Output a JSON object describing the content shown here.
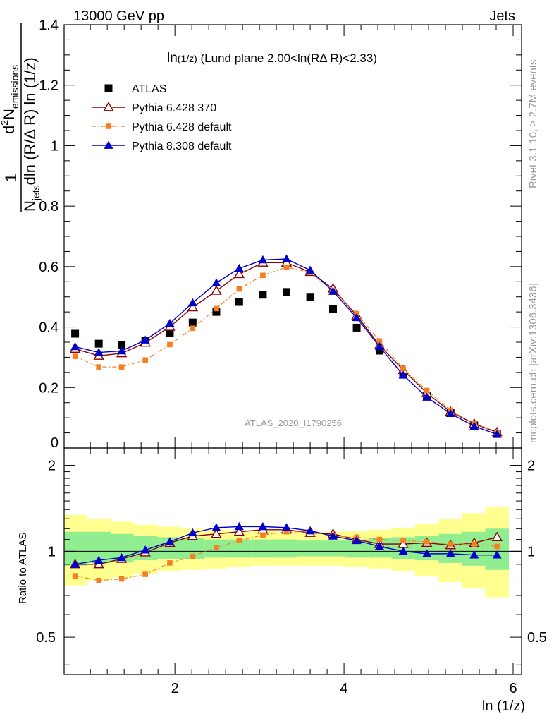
{
  "header": {
    "left": "13000 GeV pp",
    "right": "Jets"
  },
  "side": {
    "rivet": "Rivet 3.1.10, ≥ 2.7M events",
    "mcplots": "mcplots.cern.ch [arXiv:1306.3436]"
  },
  "chart_data": {
    "type": "scatter",
    "title_main": "ln",
    "title_arg": "(1/z)",
    "title_rest": " (Lund plane 2.00<ln(RΔ R)<2.33)",
    "analysis_id": "ATLAS_2020_I1790256",
    "ylabel_main": {
      "one": "1",
      "d2": "d",
      "d2_sup": "2",
      "N": "N",
      "emissions": "emissions",
      "Nj": "N",
      "jets": "jets",
      "denom_rest": "dln (R/Δ R) ln (1/z)"
    },
    "ylabel_ratio": "Ratio to ATLAS",
    "xlabel": "ln (1/z)",
    "xlim": [
      0.69,
      6.1
    ],
    "ylim_main": [
      0.0,
      1.4
    ],
    "ylim_ratio": [
      0.37,
      2.3
    ],
    "x_ticks": [
      "2",
      "4",
      "6"
    ],
    "y_ticks_main": [
      "0",
      "0.2",
      "0.4",
      "0.6",
      "0.8",
      "1",
      "1.2",
      "1.4"
    ],
    "y_ticks_ratio": [
      "0.5",
      "1",
      "2"
    ],
    "x": [
      0.82,
      1.1,
      1.37,
      1.65,
      1.94,
      2.21,
      2.49,
      2.76,
      3.04,
      3.32,
      3.6,
      3.87,
      4.15,
      4.42,
      4.7,
      4.98,
      5.26,
      5.54,
      5.81
    ],
    "series": [
      {
        "name": "ATLAS",
        "marker": "square",
        "color": "#000000",
        "values": [
          0.378,
          0.345,
          0.34,
          0.355,
          0.38,
          0.415,
          0.45,
          0.483,
          0.507,
          0.516,
          0.5,
          0.46,
          0.398,
          0.322,
          0.243,
          0.172,
          0.116,
          0.075,
          0.047
        ]
      },
      {
        "name": "Pythia 6.428 370",
        "marker": "open-triangle",
        "color": "#8b0000",
        "values": [
          0.328,
          0.305,
          0.313,
          0.348,
          0.401,
          0.465,
          0.52,
          0.575,
          0.613,
          0.613,
          0.582,
          0.527,
          0.438,
          0.34,
          0.258,
          0.182,
          0.12,
          0.08,
          0.052
        ]
      },
      {
        "name": "Pythia 6.428 default",
        "marker": "small-square",
        "color": "#f58022",
        "values": [
          0.303,
          0.268,
          0.268,
          0.291,
          0.342,
          0.396,
          0.461,
          0.526,
          0.571,
          0.598,
          0.581,
          0.52,
          0.444,
          0.354,
          0.263,
          0.19,
          0.125,
          0.08,
          0.05
        ]
      },
      {
        "name": "Pythia 8.308 default",
        "marker": "filled-triangle",
        "color": "#0000cc",
        "values": [
          0.335,
          0.316,
          0.321,
          0.357,
          0.412,
          0.48,
          0.546,
          0.594,
          0.622,
          0.625,
          0.588,
          0.518,
          0.431,
          0.335,
          0.241,
          0.168,
          0.114,
          0.072,
          0.045
        ]
      }
    ],
    "ratio_series": [
      {
        "name": "Pythia 6.428 370",
        "values": [
          0.9,
          0.9,
          0.94,
          0.99,
          1.07,
          1.13,
          1.15,
          1.17,
          1.19,
          1.19,
          1.16,
          1.15,
          1.1,
          1.06,
          1.06,
          1.07,
          1.05,
          1.07,
          1.12
        ]
      },
      {
        "name": "Pythia 6.428 default",
        "values": [
          0.82,
          0.79,
          0.8,
          0.83,
          0.91,
          0.96,
          1.03,
          1.09,
          1.14,
          1.17,
          1.17,
          1.13,
          1.12,
          1.1,
          1.09,
          1.08,
          1.06,
          1.06,
          1.04
        ]
      },
      {
        "name": "Pythia 8.308 default",
        "values": [
          0.9,
          0.93,
          0.95,
          1.01,
          1.08,
          1.16,
          1.21,
          1.22,
          1.22,
          1.21,
          1.18,
          1.13,
          1.09,
          1.04,
          1.0,
          0.98,
          0.98,
          0.97,
          0.97
        ]
      }
    ],
    "band_edges": [
      0.69,
      0.96,
      1.24,
      1.51,
      1.79,
      2.07,
      2.35,
      2.62,
      2.9,
      3.18,
      3.45,
      3.73,
      4.01,
      4.29,
      4.56,
      4.84,
      5.12,
      5.4,
      5.67,
      5.95
    ],
    "band_inner": [
      [
        0.89,
        1.17
      ],
      [
        0.91,
        1.17
      ],
      [
        0.92,
        1.15
      ],
      [
        0.93,
        1.13
      ],
      [
        0.94,
        1.12
      ],
      [
        0.94,
        1.11
      ],
      [
        0.95,
        1.1
      ],
      [
        0.95,
        1.1
      ],
      [
        0.95,
        1.1
      ],
      [
        0.95,
        1.1
      ],
      [
        0.96,
        1.09
      ],
      [
        0.96,
        1.09
      ],
      [
        0.95,
        1.1
      ],
      [
        0.95,
        1.11
      ],
      [
        0.94,
        1.12
      ],
      [
        0.93,
        1.13
      ],
      [
        0.91,
        1.15
      ],
      [
        0.89,
        1.17
      ],
      [
        0.86,
        1.2
      ]
    ],
    "band_outer": [
      [
        0.76,
        1.34
      ],
      [
        0.79,
        1.3
      ],
      [
        0.81,
        1.27
      ],
      [
        0.83,
        1.24
      ],
      [
        0.85,
        1.22
      ],
      [
        0.86,
        1.2
      ],
      [
        0.87,
        1.19
      ],
      [
        0.88,
        1.18
      ],
      [
        0.89,
        1.18
      ],
      [
        0.89,
        1.17
      ],
      [
        0.89,
        1.17
      ],
      [
        0.89,
        1.17
      ],
      [
        0.88,
        1.18
      ],
      [
        0.87,
        1.19
      ],
      [
        0.85,
        1.21
      ],
      [
        0.82,
        1.25
      ],
      [
        0.78,
        1.3
      ],
      [
        0.74,
        1.36
      ],
      [
        0.69,
        1.43
      ]
    ],
    "band_colors": {
      "inner": "#90ee90",
      "outer": "#ffff90"
    },
    "legend_position": "top-left"
  }
}
